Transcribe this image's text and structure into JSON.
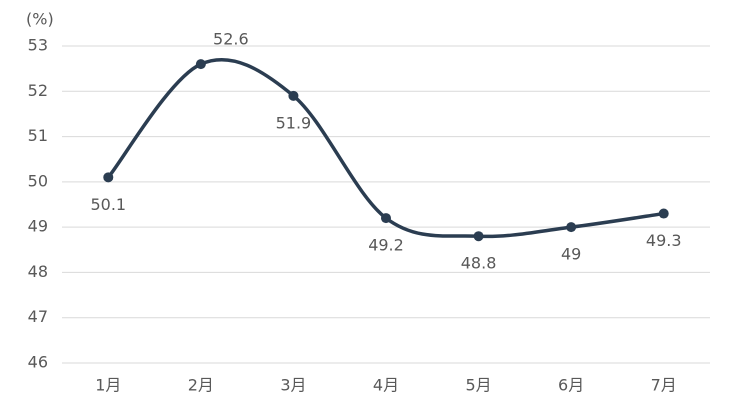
{
  "chart_data": {
    "type": "line",
    "unit_label": "(%)",
    "categories": [
      "1月",
      "2月",
      "3月",
      "4月",
      "5月",
      "6月",
      "7月"
    ],
    "values": [
      50.1,
      52.6,
      51.9,
      49.2,
      48.8,
      49,
      49.3
    ],
    "color": "#2b3d51",
    "smooth": true,
    "ylim": [
      46,
      53
    ],
    "yticks": [
      46,
      47,
      48,
      49,
      50,
      51,
      52,
      53
    ],
    "grid": true
  }
}
